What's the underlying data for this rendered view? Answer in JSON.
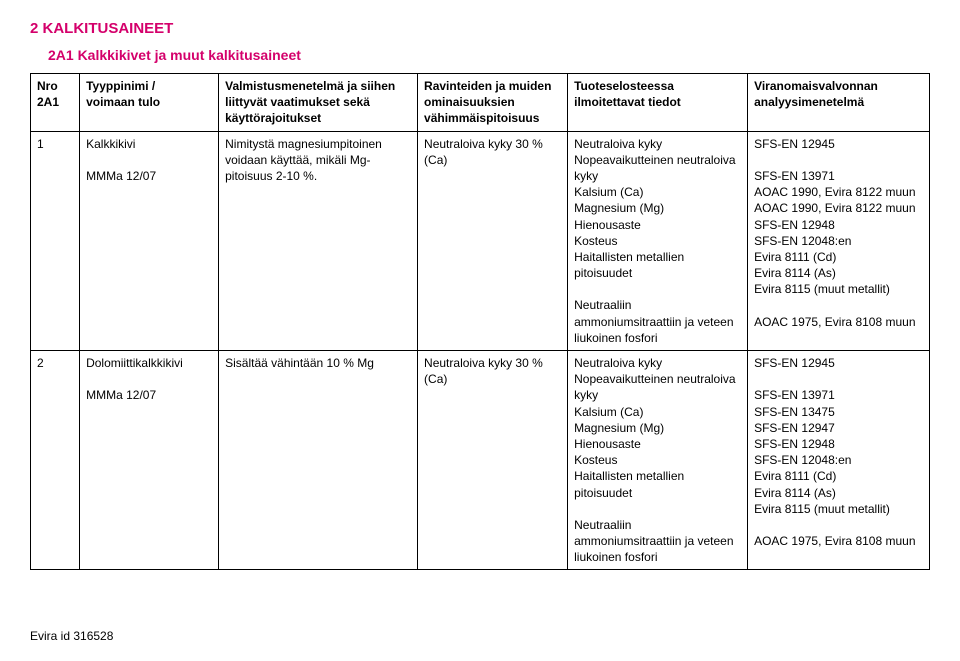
{
  "heading1": "2 KALKITUSAINEET",
  "heading2": "2A1 Kalkkikivet ja muut kalkitusaineet",
  "columns": {
    "c1": "Nro\n2A1",
    "c2": "Tyyppinimi /\nvoimaan tulo",
    "c3": "Valmistusmenetelmä ja siihen liittyvät vaatimukset sekä käyttörajoitukset",
    "c4": "Ravinteiden ja muiden ominaisuuksien vähimmäispitoisuus",
    "c5": "Tuoteselosteessa ilmoitettavat tiedot",
    "c6": "Viranomaisvalvonnan analyysimenetelmä"
  },
  "rows": [
    {
      "nro": "1",
      "tyyppi": "Kalkkikivi\n\nMMMa 12/07",
      "valm": "Nimitystä magnesiumpitoinen voidaan käyttää, mikäli Mg-pitoisuus 2-10 %.",
      "ravint": "Neutraloiva kyky 30 %\n(Ca)",
      "tuote": "Neutraloiva kyky\nNopeavaikutteinen neutraloiva kyky\nKalsium (Ca)\nMagnesium (Mg)\nHienousaste\nKosteus\nHaitallisten metallien pitoisuudet\n\nNeutraaliin ammoniumsitraattiin ja veteen liukoinen fosfori",
      "viran": "SFS-EN 12945\n\nSFS-EN 13971\nAOAC 1990, Evira 8122 muun\nAOAC 1990, Evira 8122 muun\nSFS-EN 12948\nSFS-EN 12048:en\nEvira 8111 (Cd)\nEvira 8114 (As)\nEvira 8115 (muut metallit)\n\nAOAC 1975, Evira 8108 muun"
    },
    {
      "nro": "2",
      "tyyppi": "Dolomiittikalkkikivi\n\nMMMa 12/07",
      "valm": "Sisältää vähintään 10 % Mg",
      "ravint": "Neutraloiva kyky 30 %\n(Ca)",
      "tuote": "Neutraloiva kyky\nNopeavaikutteinen neutraloiva kyky\nKalsium (Ca)\nMagnesium (Mg)\nHienousaste\nKosteus\nHaitallisten metallien pitoisuudet\n\nNeutraaliin ammoniumsitraattiin ja veteen liukoinen fosfori",
      "viran": "SFS-EN 12945\n\nSFS-EN 13971\nSFS-EN 13475\nSFS-EN 12947\nSFS-EN 12948\nSFS-EN 12048:en\nEvira 8111 (Cd)\nEvira 8114 (As)\nEvira 8115 (muut metallit)\n\nAOAC 1975, Evira 8108 muun"
    }
  ],
  "footer": "Evira id 316528",
  "colors": {
    "heading": "#d4006b",
    "text": "#000000",
    "background": "#ffffff",
    "border": "#000000"
  },
  "typography": {
    "body_fontsize": 13,
    "heading1_fontsize": 15,
    "heading2_fontsize": 14,
    "cell_fontsize": 12,
    "font_family": "Arial, sans-serif"
  }
}
